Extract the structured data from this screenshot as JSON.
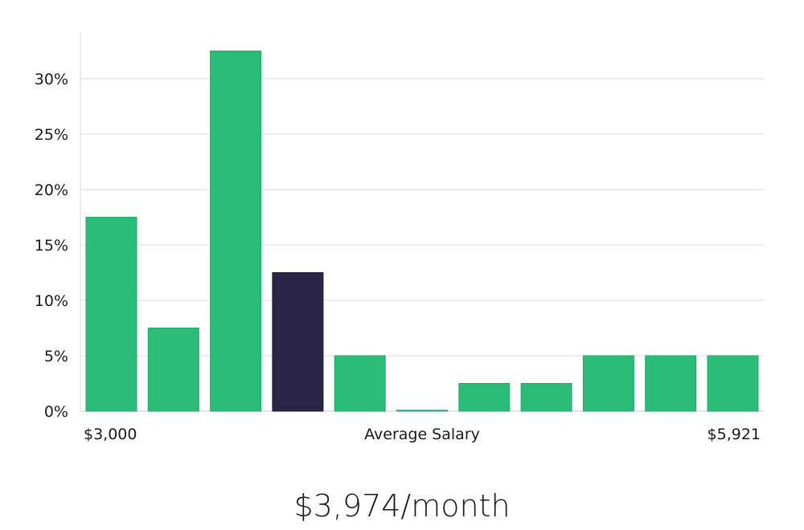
{
  "chart_data": {
    "type": "bar",
    "title": "",
    "xlabel": "Average Salary",
    "ylabel": "",
    "x_range_labels": {
      "min": "$3,000",
      "max": "$5,921"
    },
    "y_ticks": [
      "0%",
      "5%",
      "10%",
      "15%",
      "20%",
      "25%",
      "30%"
    ],
    "ylim": [
      0,
      34
    ],
    "grid": "horizontal",
    "legend": "none",
    "values": [
      17.5,
      7.5,
      32.5,
      12.5,
      5,
      0,
      2.5,
      2.5,
      5,
      5,
      5
    ],
    "highlight_index": 3,
    "colors": {
      "bar": "#2bbd77",
      "bar_stroke": "#23a866",
      "highlight": "#2a2547",
      "grid": "#e2e2e2",
      "axis": "#d8d8d8"
    }
  },
  "headline": "$3,974/month"
}
